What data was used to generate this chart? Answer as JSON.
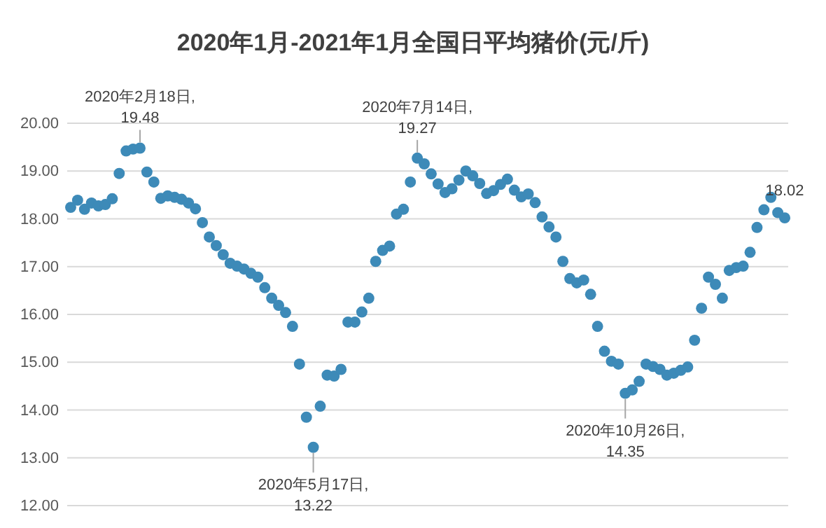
{
  "chart_data": {
    "type": "scatter",
    "title": "2020年1月-2021年1月全国日平均猪价(元/斤)",
    "categories": [
      null,
      null,
      null,
      null,
      null,
      null,
      null,
      null,
      null,
      null,
      null,
      null,
      null,
      null,
      null,
      null,
      null,
      null,
      null,
      null,
      null,
      null,
      null,
      null,
      null,
      null,
      null,
      null,
      null,
      null,
      null,
      null,
      null,
      null,
      null,
      null,
      null,
      null,
      null,
      null,
      null,
      null,
      null,
      null,
      null,
      null,
      null,
      null,
      null,
      null,
      null,
      null,
      null,
      null,
      null,
      null,
      null,
      null,
      null,
      null,
      null,
      null,
      null,
      null,
      null,
      null,
      null,
      null,
      null,
      null,
      null,
      null,
      null,
      null,
      null,
      null,
      null,
      null,
      null,
      null,
      null,
      null,
      null,
      null,
      null,
      null,
      null,
      null,
      null,
      null,
      null,
      null,
      null,
      null,
      null,
      null,
      null,
      null,
      null,
      null,
      null,
      null,
      null,
      null
    ],
    "series": [
      {
        "color": "#3d8ab8",
        "values": [
          18.24,
          18.39,
          18.2,
          18.33,
          18.27,
          18.3,
          18.42,
          18.95,
          19.42,
          19.46,
          19.48,
          18.98,
          18.77,
          18.43,
          18.48,
          18.45,
          18.41,
          18.33,
          18.21,
          17.92,
          17.62,
          17.44,
          17.25,
          17.07,
          17.01,
          16.95,
          16.86,
          16.78,
          16.56,
          16.34,
          16.19,
          16.04,
          15.75,
          14.96,
          13.85,
          13.22,
          14.08,
          14.73,
          14.71,
          14.85,
          15.84,
          15.84,
          16.05,
          16.34,
          17.11,
          17.34,
          17.43,
          18.1,
          18.2,
          18.77,
          19.27,
          19.15,
          18.94,
          18.73,
          18.55,
          18.63,
          18.81,
          19.0,
          18.9,
          18.74,
          18.53,
          18.59,
          18.72,
          18.83,
          18.6,
          18.46,
          18.52,
          18.34,
          18.04,
          17.83,
          17.62,
          17.11,
          16.75,
          16.66,
          16.72,
          16.42,
          15.75,
          15.23,
          15.02,
          14.96,
          14.35,
          14.42,
          14.6,
          14.96,
          14.91,
          14.85,
          14.73,
          14.77,
          14.83,
          14.9,
          15.46,
          16.13,
          16.78,
          16.63,
          16.34,
          16.92,
          16.98,
          17.01,
          17.3,
          17.82,
          18.19,
          18.45,
          18.13,
          18.02
        ]
      }
    ],
    "ylim": [
      12,
      20
    ],
    "yticks": [
      {
        "value": 12,
        "label": "12.00"
      },
      {
        "value": 13,
        "label": "13.00"
      },
      {
        "value": 14,
        "label": "14.00"
      },
      {
        "value": 15,
        "label": "15.00"
      },
      {
        "value": 16,
        "label": "16.00"
      },
      {
        "value": 17,
        "label": "17.00"
      },
      {
        "value": 18,
        "label": "18.00"
      },
      {
        "value": 19,
        "label": "19.00"
      },
      {
        "value": 20,
        "label": "20.00"
      }
    ],
    "tick_labels": "y",
    "grid": "y",
    "marker": "circle",
    "legend": false,
    "annotations": [
      {
        "text": "2020年2月18日,\n19.48",
        "y": 19.48
      },
      {
        "text": "2020年5月17日,\n13.22",
        "y": 13.22
      },
      {
        "text": "2020年7月14日,\n19.27",
        "y": 19.27
      },
      {
        "text": "2020年10月26日,\n14.35",
        "y": 14.35
      },
      {
        "text": "18.02",
        "y": 18.02
      }
    ]
  }
}
